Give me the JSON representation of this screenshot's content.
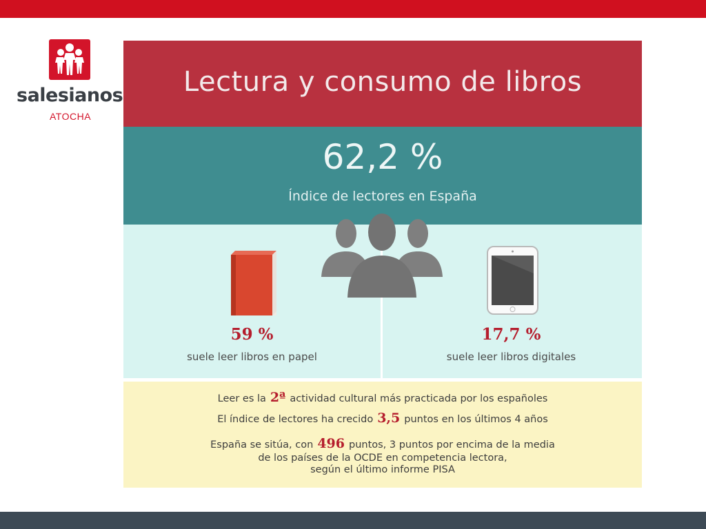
{
  "logo": {
    "brand": "salesianos",
    "location": "ATOCHA"
  },
  "infographic": {
    "title": "Lectura y consumo de libros",
    "headline_value": "62,2 %",
    "headline_label": "Índice de lectores en España",
    "paper": {
      "value": "59 %",
      "label": "suele leer libros en papel"
    },
    "digital": {
      "value": "17,7 %",
      "label": "suele leer libros digitales"
    },
    "facts": {
      "f1_pre": "Leer es la",
      "f1_hl": "2ª",
      "f1_post": "actividad cultural más practicada por los españoles",
      "f2_pre": "El índice de lectores ha crecido",
      "f2_hl": "3,5",
      "f2_post": "puntos en los últimos 4 años",
      "f3_pre": "España se sitúa, con",
      "f3_hl": "496",
      "f3_post": "puntos, 3 puntos por encima de la media",
      "f3_line2": "de los países de la OCDE en competencia lectora,",
      "f3_line3": "según el último informe PISA"
    }
  },
  "colors": {
    "top_bar": "#d0101f",
    "bottom_bar": "#3d4a55",
    "title_band": "#b8313f",
    "teal_band": "#3f8d90",
    "mint": "#d8f4f1",
    "cream": "#fbf4c4",
    "highlight": "#b51d2d"
  },
  "icons": [
    "people-icon",
    "book-icon",
    "tablet-icon",
    "salesianos-logo-icon"
  ]
}
